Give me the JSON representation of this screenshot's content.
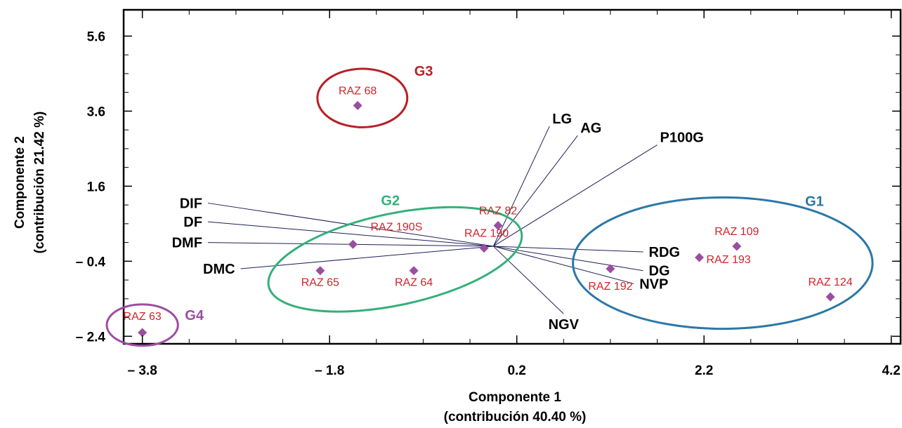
{
  "chart_data": {
    "type": "scatter",
    "subtype": "pca-biplot",
    "xlabel": "Componente 1",
    "xlabel_sub": "(contribución 40.40 %)",
    "ylabel": "Componente 2",
    "ylabel_sub": "(contribución 21.42 %)",
    "xlim": [
      -4.0,
      4.3
    ],
    "ylim": [
      -2.6,
      6.3
    ],
    "x_ticks": [
      {
        "value": -3.8,
        "label": "– 3.8"
      },
      {
        "value": -1.8,
        "label": "– 1.8"
      },
      {
        "value": 0.2,
        "label": "0.2"
      },
      {
        "value": 2.2,
        "label": "2.2"
      },
      {
        "value": 4.2,
        "label": "4.2"
      }
    ],
    "y_ticks": [
      {
        "value": -2.4,
        "label": "– 2.4"
      },
      {
        "value": -0.4,
        "label": "– 0.4"
      },
      {
        "value": 1.6,
        "label": "1.6"
      },
      {
        "value": 3.6,
        "label": "3.6"
      },
      {
        "value": 5.6,
        "label": "5.6"
      }
    ],
    "grid": false,
    "origin": [
      -0.05,
      0.0
    ],
    "points": [
      {
        "label": "RAZ 68",
        "x": -1.5,
        "y": 3.75
      },
      {
        "label": "RAZ 82",
        "x": 0.0,
        "y": 0.55
      },
      {
        "label": "RAZ 190S",
        "x": -1.55,
        "y": 0.05
      },
      {
        "label": "RAZ 190",
        "x": -0.15,
        "y": -0.05
      },
      {
        "label": "RAZ 65",
        "x": -1.9,
        "y": -0.65
      },
      {
        "label": "RAZ 64",
        "x": -0.9,
        "y": -0.65
      },
      {
        "label": "RAZ 63",
        "x": -3.8,
        "y": -2.3
      },
      {
        "label": "RAZ 109",
        "x": 2.55,
        "y": 0.0
      },
      {
        "label": "RAZ 193",
        "x": 2.15,
        "y": -0.3
      },
      {
        "label": "RAZ 192",
        "x": 1.2,
        "y": -0.6
      },
      {
        "label": "RAZ 124",
        "x": 3.55,
        "y": -1.35
      }
    ],
    "vectors": [
      {
        "label": "LG",
        "x": 0.55,
        "y": 3.2
      },
      {
        "label": "AG",
        "x": 0.85,
        "y": 2.95
      },
      {
        "label": "P100G",
        "x": 1.7,
        "y": 2.7
      },
      {
        "label": "DIF",
        "x": -3.1,
        "y": 1.15
      },
      {
        "label": "DF",
        "x": -3.1,
        "y": 0.65
      },
      {
        "label": "DMF",
        "x": -3.1,
        "y": 0.1
      },
      {
        "label": "DMC",
        "x": -2.75,
        "y": -0.6
      },
      {
        "label": "RDG",
        "x": 1.55,
        "y": -0.15
      },
      {
        "label": "DG",
        "x": 1.55,
        "y": -0.65
      },
      {
        "label": "NVP",
        "x": 1.45,
        "y": -1.0
      },
      {
        "label": "NGV",
        "x": 0.7,
        "y": -1.8
      }
    ],
    "groups": [
      {
        "label": "G1",
        "color": "#2b78a6",
        "cx": 2.4,
        "cy": -0.45,
        "rx": 1.6,
        "ry": 1.75
      },
      {
        "label": "G2",
        "color": "#33b07a",
        "cx": -1.1,
        "cy": -0.35,
        "rx": 1.38,
        "ry": 1.22
      },
      {
        "label": "G3",
        "color": "#b72025",
        "cx": -1.45,
        "cy": 3.95,
        "rx": 0.48,
        "ry": 0.78
      },
      {
        "label": "G4",
        "color": "#9b4ea0",
        "cx": -3.8,
        "cy": -2.1,
        "rx": 0.38,
        "ry": 0.55
      }
    ],
    "point_color": "#9b4ea0",
    "point_label_color": "#d2232a",
    "vector_color": "#1f1f5a"
  }
}
